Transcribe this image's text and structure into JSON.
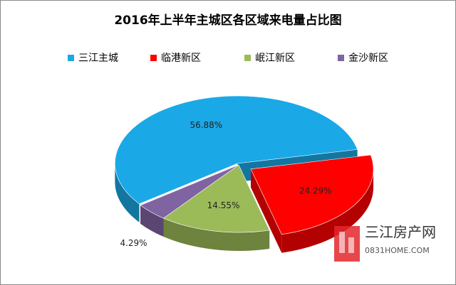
{
  "chart_data": {
    "type": "pie",
    "title": "2016年上半年主城区各区域来电量占比图",
    "categories": [
      "三江主城",
      "临港新区",
      "岷江新区",
      "金沙新区"
    ],
    "values": [
      56.88,
      24.29,
      14.55,
      4.29
    ],
    "value_labels": [
      "56.88%",
      "24.29%",
      "14.55%",
      "4.29%"
    ],
    "colors": [
      "#1aa9e6",
      "#ff0000",
      "#9bbb59",
      "#8064a2"
    ],
    "legend": "top",
    "annotations": [
      "三江房产网",
      "0831HOME.COM"
    ]
  }
}
